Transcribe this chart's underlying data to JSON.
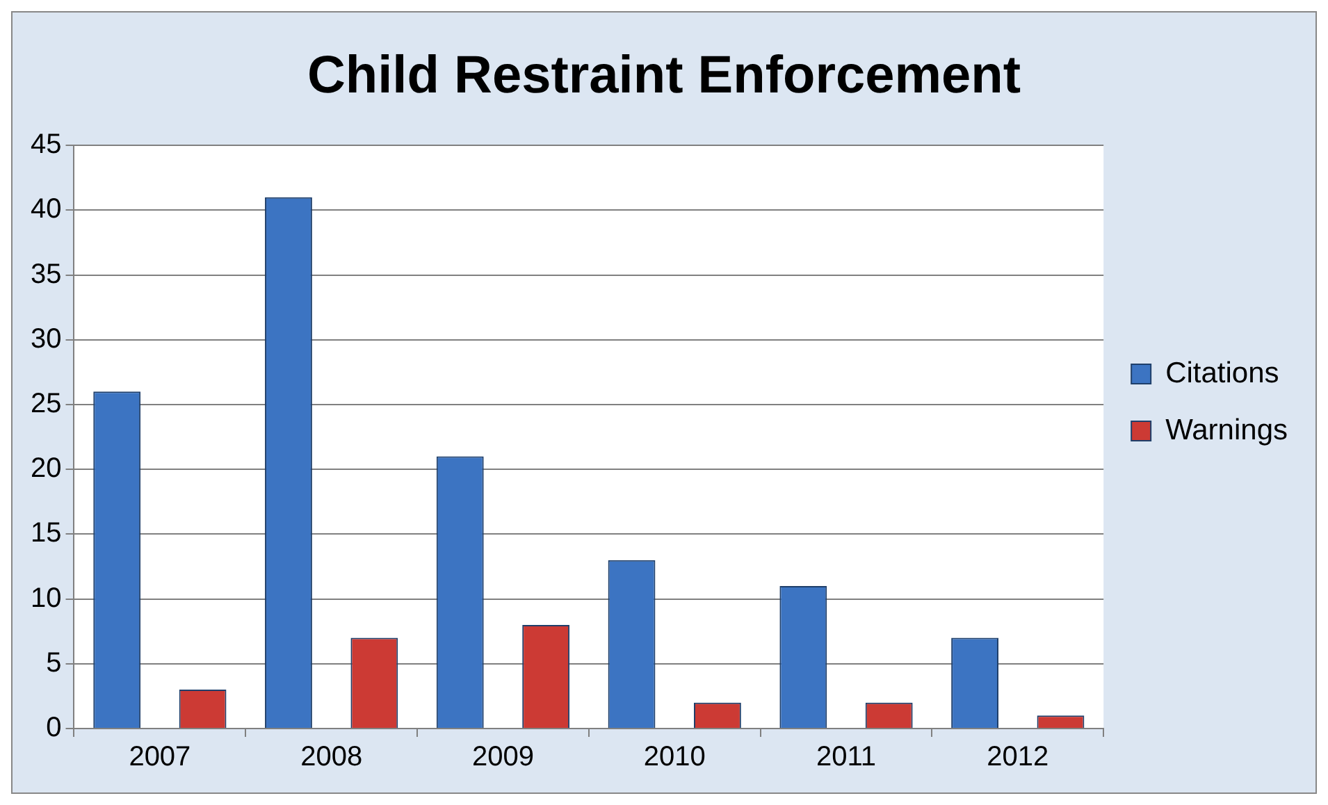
{
  "chart_data": {
    "type": "bar",
    "title": "Child Restraint Enforcement",
    "categories": [
      "2007",
      "2008",
      "2009",
      "2010",
      "2011",
      "2012"
    ],
    "series": [
      {
        "name": "Citations",
        "color": "#3c74c2",
        "values": [
          26,
          41,
          21,
          13,
          11,
          7
        ]
      },
      {
        "name": "Warnings",
        "color": "#cc3a34",
        "values": [
          3,
          7,
          8,
          2,
          2,
          1
        ]
      }
    ],
    "ylim": [
      0,
      45
    ],
    "yticks": [
      0,
      5,
      10,
      15,
      20,
      25,
      30,
      35,
      40,
      45
    ],
    "grid": "y",
    "legend": "right"
  }
}
